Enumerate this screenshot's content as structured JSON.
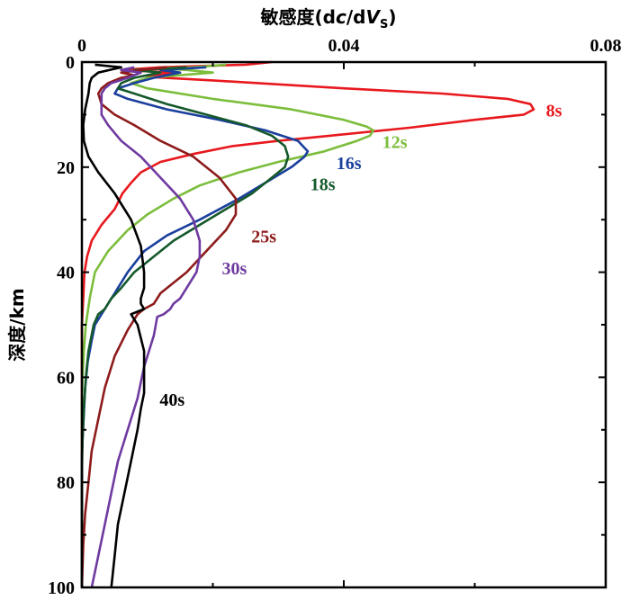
{
  "chart_data": {
    "type": "line",
    "xlabel_main": "敏感度(d",
    "xlabel_c": "c",
    "xlabel_mid": "/d",
    "xlabel_V": "V",
    "xlabel_sub": "S",
    "xlabel_close": ")",
    "ylabel": "深度/km",
    "xlim": [
      0,
      0.08
    ],
    "ylim": [
      0,
      100
    ],
    "y_inverted": true,
    "x_axis_position": "top",
    "xticks": [
      "0",
      "0.04",
      "0.08"
    ],
    "xtick_values": [
      0,
      0.04,
      0.08
    ],
    "yticks": [
      "0",
      "20",
      "40",
      "60",
      "80",
      "100"
    ],
    "ytick_values": [
      0,
      20,
      40,
      60,
      80,
      100
    ],
    "grid": false,
    "series": [
      {
        "name": "8s",
        "color": "#e8191e",
        "label_at": [
          0.0695,
          9
        ],
        "points": [
          [
            0.029,
            0
          ],
          [
            0.025,
            0.5
          ],
          [
            0.012,
            1
          ],
          [
            0.006,
            1.5
          ],
          [
            0.014,
            2
          ],
          [
            0.01,
            2.8
          ],
          [
            0.02,
            3.5
          ],
          [
            0.04,
            5
          ],
          [
            0.055,
            6
          ],
          [
            0.065,
            7
          ],
          [
            0.0685,
            8
          ],
          [
            0.069,
            9
          ],
          [
            0.0675,
            10
          ],
          [
            0.06,
            11
          ],
          [
            0.05,
            12.5
          ],
          [
            0.038,
            14
          ],
          [
            0.03,
            15
          ],
          [
            0.023,
            16
          ],
          [
            0.017,
            17.5
          ],
          [
            0.012,
            19
          ],
          [
            0.009,
            21
          ],
          [
            0.0075,
            23
          ],
          [
            0.0062,
            25
          ],
          [
            0.005,
            28
          ],
          [
            0.003,
            31
          ],
          [
            0.0015,
            34
          ],
          [
            0.0008,
            37
          ],
          [
            0.0004,
            40
          ],
          [
            0.0002,
            45
          ],
          [
            0,
            50
          ],
          [
            0,
            100
          ]
        ]
      },
      {
        "name": "12s",
        "color": "#7cbd3c",
        "label_at": [
          0.0445,
          15
        ],
        "points": [
          [
            0.022,
            0.5
          ],
          [
            0.017,
            1
          ],
          [
            0.012,
            1.2
          ],
          [
            0.016,
            1.5
          ],
          [
            0.02,
            2
          ],
          [
            0.015,
            2.5
          ],
          [
            0.01,
            3
          ],
          [
            0.0075,
            4
          ],
          [
            0.01,
            5
          ],
          [
            0.02,
            7
          ],
          [
            0.032,
            9
          ],
          [
            0.04,
            11
          ],
          [
            0.0435,
            12.3
          ],
          [
            0.0445,
            13
          ],
          [
            0.044,
            14
          ],
          [
            0.042,
            15
          ],
          [
            0.037,
            17
          ],
          [
            0.03,
            19
          ],
          [
            0.024,
            21
          ],
          [
            0.018,
            23.5
          ],
          [
            0.014,
            26
          ],
          [
            0.01,
            29
          ],
          [
            0.007,
            32
          ],
          [
            0.004,
            36
          ],
          [
            0.002,
            40
          ],
          [
            0.0012,
            45
          ],
          [
            0.0006,
            50
          ],
          [
            0.0003,
            55
          ],
          [
            0.0001,
            60
          ],
          [
            0,
            65
          ],
          [
            0,
            100
          ]
        ]
      },
      {
        "name": "16s",
        "color": "#1b3f9c",
        "label_at": [
          0.0375,
          19
        ],
        "points": [
          [
            0.019,
            1
          ],
          [
            0.015,
            1.3
          ],
          [
            0.012,
            1.5
          ],
          [
            0.015,
            2
          ],
          [
            0.011,
            3
          ],
          [
            0.008,
            4
          ],
          [
            0.0055,
            5
          ],
          [
            0.005,
            6
          ],
          [
            0.007,
            7
          ],
          [
            0.013,
            9
          ],
          [
            0.021,
            11
          ],
          [
            0.028,
            13
          ],
          [
            0.033,
            15
          ],
          [
            0.0345,
            17
          ],
          [
            0.034,
            18
          ],
          [
            0.032,
            20
          ],
          [
            0.028,
            23
          ],
          [
            0.024,
            26
          ],
          [
            0.018,
            30
          ],
          [
            0.013,
            33
          ],
          [
            0.0095,
            36
          ],
          [
            0.007,
            40
          ],
          [
            0.005,
            44
          ],
          [
            0.004,
            46
          ],
          [
            0.003,
            48
          ],
          [
            0.002,
            50
          ],
          [
            0.0015,
            53
          ],
          [
            0.0009,
            57
          ],
          [
            0.0005,
            62
          ],
          [
            0.0003,
            67
          ],
          [
            0.0001,
            72
          ],
          [
            0,
            75
          ],
          [
            0,
            100
          ]
        ]
      },
      {
        "name": "18s",
        "color": "#15592b",
        "label_at": [
          0.0335,
          23
        ],
        "points": [
          [
            0.016,
            1
          ],
          [
            0.012,
            1.3
          ],
          [
            0.008,
            1.5
          ],
          [
            0.012,
            2
          ],
          [
            0.008,
            3
          ],
          [
            0.006,
            4
          ],
          [
            0.0055,
            5
          ],
          [
            0.008,
            6
          ],
          [
            0.013,
            8
          ],
          [
            0.019,
            10
          ],
          [
            0.025,
            12
          ],
          [
            0.029,
            14
          ],
          [
            0.031,
            16
          ],
          [
            0.0315,
            18
          ],
          [
            0.031,
            20
          ],
          [
            0.029,
            22
          ],
          [
            0.026,
            25
          ],
          [
            0.022,
            28
          ],
          [
            0.018,
            31
          ],
          [
            0.014,
            34
          ],
          [
            0.011,
            37
          ],
          [
            0.008,
            40
          ],
          [
            0.006,
            43
          ],
          [
            0.0045,
            45
          ],
          [
            0.0035,
            47
          ],
          [
            0.0025,
            48
          ],
          [
            0.0018,
            50
          ],
          [
            0.001,
            55
          ],
          [
            0.0006,
            60
          ],
          [
            0.0003,
            66
          ],
          [
            0.0001,
            72
          ],
          [
            0,
            78
          ],
          [
            0,
            100
          ]
        ]
      },
      {
        "name": "25s",
        "color": "#8e1b1b",
        "label_at": [
          0.0245,
          33
        ],
        "points": [
          [
            0.013,
            1
          ],
          [
            0.009,
            1.5
          ],
          [
            0.006,
            2
          ],
          [
            0.008,
            2.5
          ],
          [
            0.006,
            3
          ],
          [
            0.004,
            4
          ],
          [
            0.003,
            5
          ],
          [
            0.0025,
            6
          ],
          [
            0.003,
            8
          ],
          [
            0.005,
            10
          ],
          [
            0.008,
            12
          ],
          [
            0.012,
            15
          ],
          [
            0.017,
            18
          ],
          [
            0.021,
            22
          ],
          [
            0.0235,
            26
          ],
          [
            0.0235,
            29
          ],
          [
            0.022,
            32
          ],
          [
            0.019,
            36
          ],
          [
            0.016,
            40
          ],
          [
            0.012,
            44
          ],
          [
            0.011,
            46
          ],
          [
            0.0095,
            47
          ],
          [
            0.0085,
            48
          ],
          [
            0.008,
            49
          ],
          [
            0.007,
            51
          ],
          [
            0.005,
            56
          ],
          [
            0.0035,
            62
          ],
          [
            0.0025,
            68
          ],
          [
            0.0015,
            74
          ],
          [
            0.001,
            80
          ],
          [
            0.0005,
            86
          ],
          [
            0.0002,
            92
          ],
          [
            0,
            100
          ]
        ]
      },
      {
        "name": "30s",
        "color": "#6e3aa0",
        "label_at": [
          0.02,
          39
        ],
        "points": [
          [
            0.008,
            1
          ],
          [
            0.006,
            1.5
          ],
          [
            0.009,
            2
          ],
          [
            0.007,
            3
          ],
          [
            0.0045,
            4
          ],
          [
            0.0035,
            5
          ],
          [
            0.003,
            6
          ],
          [
            0.003,
            8
          ],
          [
            0.003,
            10
          ],
          [
            0.004,
            12
          ],
          [
            0.006,
            15
          ],
          [
            0.009,
            18
          ],
          [
            0.012,
            22
          ],
          [
            0.015,
            26
          ],
          [
            0.017,
            30
          ],
          [
            0.018,
            34
          ],
          [
            0.018,
            37
          ],
          [
            0.0175,
            40
          ],
          [
            0.0165,
            42
          ],
          [
            0.015,
            45
          ],
          [
            0.014,
            46
          ],
          [
            0.0135,
            47
          ],
          [
            0.0125,
            48
          ],
          [
            0.0115,
            48.5
          ],
          [
            0.011,
            52
          ],
          [
            0.0095,
            58
          ],
          [
            0.0085,
            64
          ],
          [
            0.007,
            70
          ],
          [
            0.0055,
            76
          ],
          [
            0.0045,
            82
          ],
          [
            0.0035,
            88
          ],
          [
            0.0025,
            94
          ],
          [
            0.0015,
            100
          ]
        ]
      },
      {
        "name": "40s",
        "color": "#000000",
        "label_at": [
          0.0105,
          64
        ],
        "points": [
          [
            0.002,
            0.5
          ],
          [
            0.006,
            1
          ],
          [
            0.0025,
            2
          ],
          [
            0.0015,
            3
          ],
          [
            0.0012,
            4
          ],
          [
            0.001,
            6
          ],
          [
            0.0005,
            9
          ],
          [
            0.0002,
            12
          ],
          [
            0.0003,
            15
          ],
          [
            0.001,
            18
          ],
          [
            0.0025,
            21
          ],
          [
            0.005,
            25
          ],
          [
            0.0075,
            30
          ],
          [
            0.009,
            35
          ],
          [
            0.0095,
            40
          ],
          [
            0.0095,
            43
          ],
          [
            0.009,
            45
          ],
          [
            0.009,
            46
          ],
          [
            0.0095,
            47
          ],
          [
            0.0075,
            48
          ],
          [
            0.0085,
            50
          ],
          [
            0.0095,
            55
          ],
          [
            0.0095,
            60
          ],
          [
            0.0095,
            63
          ],
          [
            0.009,
            66
          ],
          [
            0.0085,
            70
          ],
          [
            0.0075,
            76
          ],
          [
            0.0065,
            82
          ],
          [
            0.0055,
            88
          ],
          [
            0.005,
            94
          ],
          [
            0.0045,
            100
          ]
        ]
      }
    ]
  }
}
